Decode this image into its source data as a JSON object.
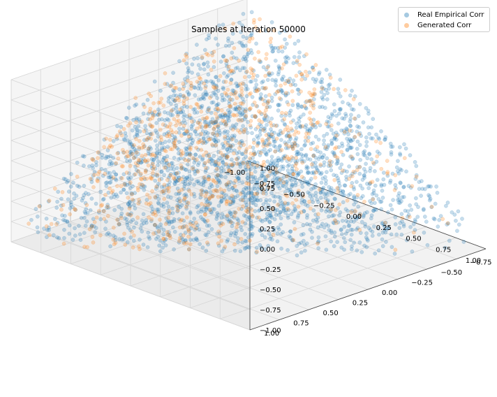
{
  "chart_data": {
    "type": "scatter",
    "title": "Samples at Iteration 50000",
    "projection": "3d",
    "xlabel": "",
    "ylabel": "",
    "zlabel": "",
    "xlim": [
      -1.0,
      1.0
    ],
    "ylim": [
      -1.0,
      1.0
    ],
    "zlim": [
      -1.0,
      1.0
    ],
    "x_ticks": [
      "−1.00",
      "−0.75",
      "−0.50",
      "−0.25",
      "0.00",
      "0.25",
      "0.50",
      "0.75",
      "1.00"
    ],
    "y_ticks": [
      "−1.00",
      "−0.75",
      "−0.50",
      "−0.25",
      "0.00",
      "0.25",
      "0.50",
      "0.75",
      "1.00"
    ],
    "z_ticks": [
      "−1.00",
      "−0.75",
      "−0.50",
      "−0.25",
      "0.00",
      "0.25",
      "0.50",
      "0.75",
      "1.00"
    ],
    "grid": true,
    "legend_position": "top-right",
    "series": [
      {
        "name": "Real Empirical Corr",
        "color": "#1f77b4",
        "alpha": 0.25,
        "region": "elliptope of 3x3 correlation matrices",
        "extremes": [
          [
            -1,
            -1,
            1
          ],
          [
            1,
            1,
            1
          ],
          [
            -1,
            1,
            -1
          ],
          [
            1,
            -1,
            -1
          ]
        ]
      },
      {
        "name": "Generated Corr",
        "color": "#ff7f0e",
        "alpha": 0.25,
        "region": "elliptope of 3x3 correlation matrices (concentrated on x<0 boundary)",
        "extremes": [
          [
            -1,
            -1,
            1
          ],
          [
            1,
            1,
            1
          ],
          [
            -1,
            1,
            -1
          ],
          [
            1,
            -1,
            -1
          ]
        ]
      }
    ]
  }
}
